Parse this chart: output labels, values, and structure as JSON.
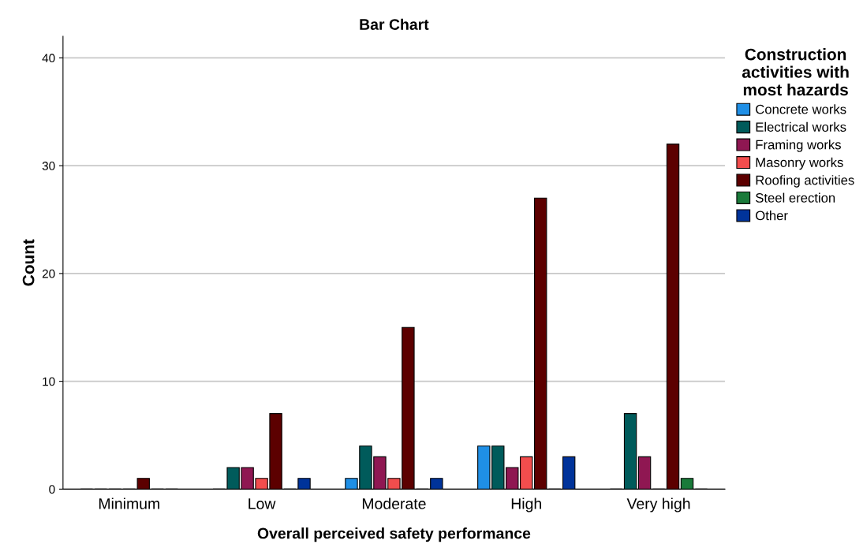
{
  "chart_data": {
    "type": "bar",
    "title": "Bar Chart",
    "xlabel": "Overall perceived safety performance",
    "ylabel": "Count",
    "legend_title": "Construction\nactivities with\nmost hazards",
    "categories": [
      "Minimum",
      "Low",
      "Moderate",
      "High",
      "Very high"
    ],
    "series": [
      {
        "name": "Concrete works",
        "color": "#1f8fe6",
        "values": [
          0,
          0,
          1,
          4,
          0
        ]
      },
      {
        "name": "Electrical works",
        "color": "#005b5b",
        "values": [
          0,
          2,
          4,
          4,
          7
        ]
      },
      {
        "name": "Framing works",
        "color": "#8f1752",
        "values": [
          0,
          2,
          3,
          2,
          3
        ]
      },
      {
        "name": "Masonry works",
        "color": "#f24d4d",
        "values": [
          0,
          1,
          1,
          3,
          0
        ]
      },
      {
        "name": "Roofing activities",
        "color": "#5c0000",
        "values": [
          1,
          7,
          15,
          27,
          32
        ]
      },
      {
        "name": "Steel erection",
        "color": "#1a7a3a",
        "values": [
          0,
          0,
          0,
          0,
          1
        ]
      },
      {
        "name": "Other",
        "color": "#00339a",
        "values": [
          0,
          1,
          1,
          3,
          0
        ]
      }
    ],
    "ylim": [
      0,
      42
    ],
    "yticks": [
      0,
      10,
      20,
      30,
      40
    ],
    "grid": "y",
    "legend": "right"
  }
}
